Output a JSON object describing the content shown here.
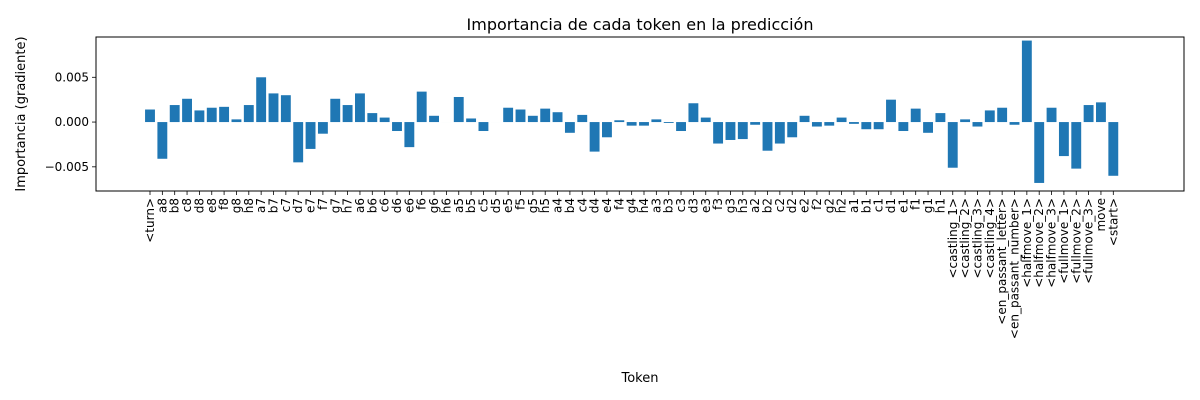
{
  "chart_data": {
    "type": "bar",
    "title": "Importancia de cada token en la predicción",
    "xlabel": "Token",
    "ylabel": "Importancia (gradiente)",
    "ylim": [
      -0.0077,
      0.0095
    ],
    "yticks": [
      -0.005,
      0.0,
      0.005
    ],
    "ytick_labels": [
      "−0.005",
      "0.000",
      "0.005"
    ],
    "grid": false,
    "bar_color": "#1f77b4",
    "categories": [
      "<turn>",
      "a8",
      "b8",
      "c8",
      "d8",
      "e8",
      "f8",
      "g8",
      "h8",
      "a7",
      "b7",
      "c7",
      "d7",
      "e7",
      "f7",
      "g7",
      "h7",
      "a6",
      "b6",
      "c6",
      "d6",
      "e6",
      "f6",
      "g6",
      "h6",
      "a5",
      "b5",
      "c5",
      "d5",
      "e5",
      "f5",
      "g5",
      "h5",
      "a4",
      "b4",
      "c4",
      "d4",
      "e4",
      "f4",
      "g4",
      "h4",
      "a3",
      "b3",
      "c3",
      "d3",
      "e3",
      "f3",
      "g3",
      "h3",
      "a2",
      "b2",
      "c2",
      "d2",
      "e2",
      "f2",
      "g2",
      "h2",
      "a1",
      "b1",
      "c1",
      "d1",
      "e1",
      "f1",
      "g1",
      "h1",
      "<castling_1>",
      "<castling_2>",
      "<castling_3>",
      "<castling_4>",
      "<en_passant_letter>",
      "<en_passant_number>",
      "<halfmove_1>",
      "<halfmove_2>",
      "<halfmove_3>",
      "<fullmove_1>",
      "<fullmove_2>",
      "<fullmove_3>",
      "move",
      "<start>"
    ],
    "values": [
      0.0014,
      -0.0041,
      0.0019,
      0.0026,
      0.0013,
      0.0016,
      0.0017,
      0.0003,
      0.0019,
      0.005,
      0.0032,
      0.003,
      -0.0045,
      -0.003,
      -0.0013,
      0.0026,
      0.0019,
      0.0032,
      0.001,
      0.0005,
      -0.001,
      -0.0028,
      0.0034,
      0.0007,
      0.0,
      0.0028,
      0.0004,
      -0.001,
      0.0,
      0.0016,
      0.0014,
      0.0007,
      0.0015,
      0.0011,
      -0.0012,
      0.0008,
      -0.0033,
      -0.0017,
      0.0002,
      -0.0004,
      -0.0004,
      0.0003,
      -0.0001,
      -0.001,
      0.0021,
      0.0005,
      -0.0024,
      -0.002,
      -0.0019,
      -0.0003,
      -0.0032,
      -0.0024,
      -0.0017,
      0.0007,
      -0.0005,
      -0.0004,
      0.0005,
      -0.0002,
      -0.0008,
      -0.0008,
      0.0025,
      -0.001,
      0.0015,
      -0.0012,
      0.001,
      -0.0051,
      0.0003,
      -0.0005,
      0.0013,
      0.0016,
      -0.0003,
      0.0091,
      -0.0068,
      0.0016,
      -0.0038,
      -0.0052,
      0.0019,
      0.0022,
      -0.006
    ]
  }
}
